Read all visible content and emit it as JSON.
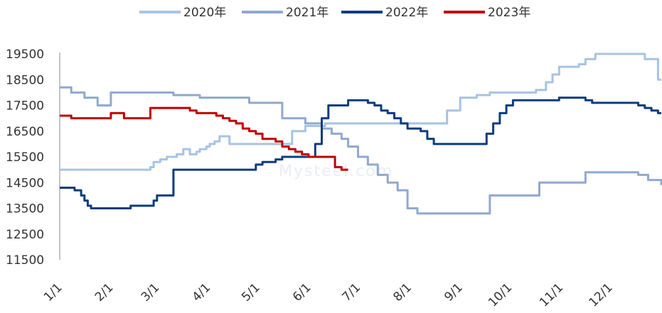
{
  "chart_data": {
    "type": "line",
    "ylim": [
      11500,
      19500
    ],
    "yticks": [
      19500,
      18500,
      17500,
      16500,
      15500,
      14500,
      13500,
      12500,
      11500
    ],
    "xlim": [
      1,
      366
    ],
    "xticks": [
      {
        "label": "1/1",
        "day": 1
      },
      {
        "label": "2/1",
        "day": 32
      },
      {
        "label": "3/1",
        "day": 60
      },
      {
        "label": "4/1",
        "day": 91
      },
      {
        "label": "5/1",
        "day": 121
      },
      {
        "label": "6/1",
        "day": 152
      },
      {
        "label": "7/1",
        "day": 182
      },
      {
        "label": "8/1",
        "day": 213
      },
      {
        "label": "9/1",
        "day": 244
      },
      {
        "label": "10/1",
        "day": 274
      },
      {
        "label": "11/1",
        "day": 305
      },
      {
        "label": "12/1",
        "day": 335
      }
    ],
    "legend_position": "top-center",
    "grid": false,
    "watermark": "Mysteel.com",
    "series": [
      {
        "name": "2020年",
        "color": "#a6c3e3",
        "x": [
          1,
          8,
          20,
          48,
          52,
          56,
          58,
          62,
          64,
          66,
          72,
          76,
          80,
          84,
          86,
          90,
          92,
          95,
          98,
          100,
          104,
          108,
          112,
          116,
          122,
          130,
          136,
          140,
          142,
          150,
          162,
          172,
          182,
          196,
          200,
          210,
          220,
          226,
          230,
          236,
          244,
          254,
          262,
          266,
          270,
          274,
          278,
          283,
          285,
          290,
          296,
          300,
          304,
          308,
          312,
          316,
          320,
          326,
          330,
          336,
          340,
          344,
          350,
          356,
          360,
          364,
          366
        ],
        "values": [
          15000,
          15000,
          15000,
          15000,
          15000,
          15100,
          15300,
          15400,
          15400,
          15500,
          15600,
          15800,
          15600,
          15700,
          15800,
          15900,
          16000,
          16100,
          16300,
          16300,
          16000,
          16000,
          16000,
          16000,
          16000,
          16000,
          16000,
          16000,
          16500,
          16700,
          16800,
          16800,
          16800,
          16800,
          16800,
          16800,
          16800,
          16800,
          16800,
          17300,
          17800,
          17900,
          18000,
          18000,
          18000,
          18000,
          18000,
          18000,
          18000,
          18100,
          18400,
          18700,
          19000,
          19000,
          19000,
          19100,
          19300,
          19500,
          19500,
          19500,
          19500,
          19500,
          19500,
          19300,
          19300,
          18500,
          18500
        ]
      },
      {
        "name": "2021年",
        "color": "#8fa9cf",
        "x": [
          1,
          4,
          8,
          12,
          16,
          20,
          24,
          28,
          32,
          36,
          40,
          50,
          60,
          70,
          76,
          86,
          92,
          100,
          110,
          116,
          124,
          130,
          136,
          142,
          148,
          150,
          155,
          160,
          166,
          172,
          176,
          182,
          188,
          194,
          200,
          206,
          212,
          218,
          226,
          234,
          244,
          252,
          262,
          270,
          276,
          282,
          292,
          300,
          310,
          320,
          330,
          340,
          346,
          352,
          358,
          362,
          366
        ],
        "values": [
          18200,
          18200,
          18000,
          18000,
          17800,
          17800,
          17500,
          17500,
          18000,
          18000,
          18000,
          18000,
          18000,
          17900,
          17900,
          17800,
          17800,
          17800,
          17800,
          17600,
          17600,
          17600,
          17000,
          17000,
          17000,
          16800,
          16800,
          16600,
          16400,
          16200,
          15900,
          15500,
          15200,
          14800,
          14500,
          14200,
          13500,
          13300,
          13300,
          13300,
          13300,
          13300,
          14000,
          14000,
          14000,
          14000,
          14500,
          14500,
          14500,
          14900,
          14900,
          14900,
          14900,
          14800,
          14600,
          14600,
          14400
        ]
      },
      {
        "name": "2022年",
        "color": "#0b3c7e",
        "x": [
          1,
          6,
          10,
          12,
          14,
          16,
          18,
          20,
          24,
          28,
          30,
          32,
          34,
          36,
          38,
          40,
          42,
          44,
          46,
          48,
          50,
          52,
          54,
          56,
          58,
          60,
          64,
          70,
          76,
          82,
          88,
          92,
          96,
          100,
          104,
          108,
          112,
          116,
          120,
          124,
          128,
          132,
          136,
          140,
          144,
          148,
          152,
          156,
          160,
          164,
          168,
          172,
          176,
          180,
          184,
          188,
          192,
          196,
          200,
          204,
          208,
          212,
          216,
          220,
          224,
          228,
          232,
          236,
          240,
          244,
          248,
          252,
          256,
          260,
          264,
          268,
          272,
          276,
          280,
          284,
          288,
          292,
          296,
          300,
          304,
          308,
          312,
          316,
          320,
          324,
          328,
          332,
          336,
          340,
          344,
          348,
          352,
          356,
          360,
          364,
          366
        ],
        "values": [
          14300,
          14300,
          14200,
          14200,
          14000,
          13800,
          13600,
          13500,
          13500,
          13500,
          13500,
          13500,
          13500,
          13500,
          13500,
          13500,
          13500,
          13600,
          13600,
          13600,
          13600,
          13600,
          13600,
          13600,
          13800,
          14000,
          14000,
          15000,
          15000,
          15000,
          15000,
          15000,
          15000,
          15000,
          15000,
          15000,
          15000,
          15000,
          15200,
          15300,
          15300,
          15400,
          15500,
          15500,
          15500,
          15500,
          15500,
          16000,
          17000,
          17500,
          17500,
          17500,
          17700,
          17700,
          17700,
          17600,
          17500,
          17300,
          17200,
          17000,
          16800,
          16600,
          16600,
          16500,
          16200,
          16000,
          16000,
          16000,
          16000,
          16000,
          16000,
          16000,
          16000,
          16400,
          16800,
          17200,
          17500,
          17700,
          17700,
          17700,
          17700,
          17700,
          17700,
          17700,
          17800,
          17800,
          17800,
          17800,
          17700,
          17600,
          17600,
          17600,
          17600,
          17600,
          17600,
          17600,
          17500,
          17400,
          17300,
          17200,
          17200
        ]
      },
      {
        "name": "2023年",
        "color": "#c00000",
        "x": [
          1,
          4,
          8,
          14,
          20,
          24,
          28,
          32,
          36,
          40,
          44,
          48,
          52,
          56,
          60,
          64,
          68,
          72,
          76,
          80,
          84,
          88,
          92,
          96,
          100,
          104,
          108,
          112,
          116,
          120,
          124,
          128,
          132,
          136,
          140,
          144,
          148,
          152,
          156,
          160,
          164,
          168,
          172,
          176
        ],
        "values": [
          17100,
          17100,
          17000,
          17000,
          17000,
          17000,
          17000,
          17200,
          17200,
          17000,
          17000,
          17000,
          17000,
          17400,
          17400,
          17400,
          17400,
          17400,
          17400,
          17300,
          17200,
          17200,
          17200,
          17100,
          17000,
          16900,
          16800,
          16600,
          16500,
          16400,
          16200,
          16200,
          16100,
          15900,
          15800,
          15700,
          15600,
          15500,
          15500,
          15500,
          15500,
          15100,
          15000,
          15000
        ]
      }
    ]
  }
}
